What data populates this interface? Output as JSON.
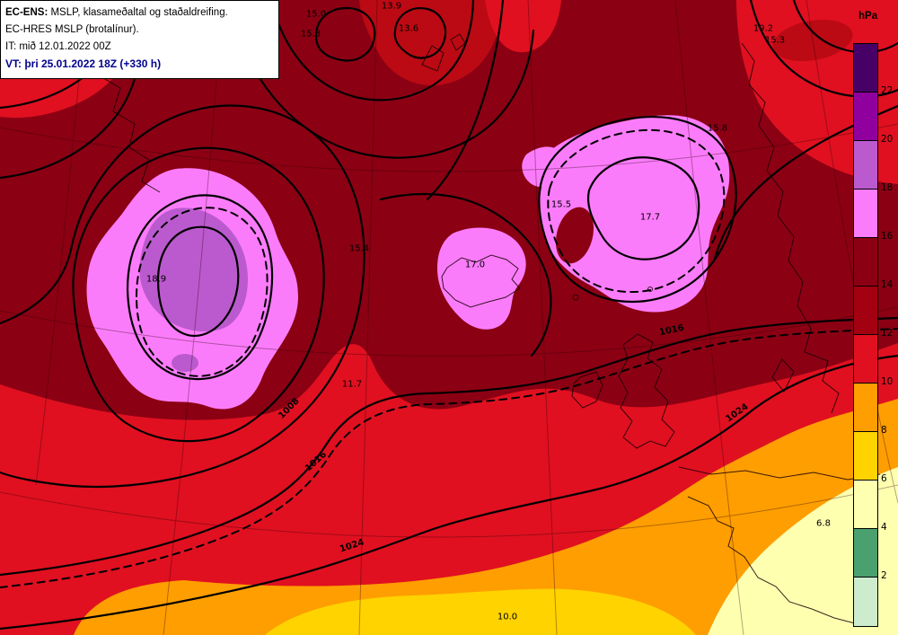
{
  "header": {
    "line1_label": "EC-ENS:",
    "line1_text": " MSLP, klasameðaltal og staðaldreifing.",
    "line2": "EC-HRES MSLP (brotalínur).",
    "line3": "IT: mið 12.01.2022 00Z",
    "line4": "VT: þri 25.01.2022 18Z (+330 h)"
  },
  "colorbar": {
    "title": "hPa",
    "ticks": [
      "22",
      "20",
      "18",
      "16",
      "14",
      "12",
      "10",
      "8",
      "6",
      "4",
      "2"
    ],
    "colors": [
      "#470066",
      "#90009e",
      "#bb5ace",
      "#fb7cfb",
      "#8c0013",
      "#a30011",
      "#e01020",
      "#ff9e00",
      "#ffd300",
      "#ffffb0",
      "#4aa06e",
      "#cdeccd"
    ]
  },
  "spread_labels": [
    {
      "text": "15.0"
    },
    {
      "text": "13.9"
    },
    {
      "text": "13.6"
    },
    {
      "text": "15.8"
    },
    {
      "text": "19.2"
    },
    {
      "text": "15.3"
    },
    {
      "text": "15.8"
    },
    {
      "text": "15.5"
    },
    {
      "text": "17.7"
    },
    {
      "text": "15.4"
    },
    {
      "text": "17.0"
    },
    {
      "text": "18.9"
    },
    {
      "text": "11.7"
    },
    {
      "text": "6.8"
    },
    {
      "text": "10.0"
    }
  ],
  "contour_labels": [
    {
      "text": "1008"
    },
    {
      "text": "1016"
    },
    {
      "text": "1016"
    },
    {
      "text": "1024"
    },
    {
      "text": "1024"
    }
  ],
  "chart_data": {
    "type": "heatmap",
    "title": "EC-ENS MSLP ensemble mean and standard deviation, EC-HRES MSLP dashed",
    "colorbar_unit": "hPa",
    "colorbar_levels": [
      2,
      4,
      6,
      8,
      10,
      12,
      14,
      16,
      18,
      20,
      22
    ],
    "isobar_labels": [
      1008,
      1016,
      1016,
      1024,
      1024
    ],
    "spread_local_values": [
      15.0,
      13.9,
      13.6,
      15.8,
      19.2,
      15.3,
      15.8,
      15.5,
      17.7,
      15.4,
      17.0,
      18.9,
      11.7,
      6.8,
      10.0
    ]
  }
}
